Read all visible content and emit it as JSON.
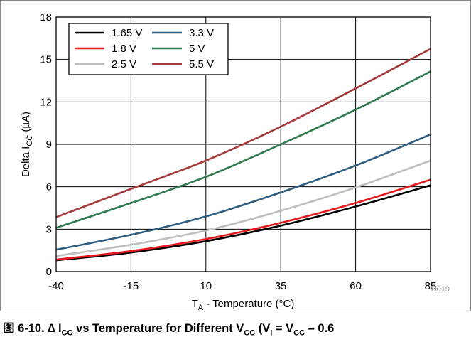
{
  "chart_data": {
    "type": "line",
    "xlabel": {
      "main": "T",
      "sub": "A",
      "rest": " - Temperature (°C)"
    },
    "ylabel": {
      "main": "Delta I",
      "sub": "CC",
      "rest": " (µA)"
    },
    "x_ticks": [
      -40,
      -15,
      10,
      35,
      60,
      85
    ],
    "y_ticks": [
      0,
      3,
      6,
      9,
      12,
      15,
      18
    ],
    "xlim": [
      -40,
      85
    ],
    "ylim": [
      0,
      18
    ],
    "grid": true,
    "legend_position": "top-left",
    "figure_code": "D019",
    "series": [
      {
        "name": "1.65 V",
        "color": "#000000",
        "x": [
          -40,
          -15,
          10,
          35,
          60,
          85
        ],
        "y": [
          0.8,
          1.35,
          2.15,
          3.25,
          4.6,
          6.1
        ]
      },
      {
        "name": "1.8 V",
        "color": "#e8191c",
        "x": [
          -40,
          -15,
          10,
          35,
          60,
          85
        ],
        "y": [
          0.85,
          1.45,
          2.3,
          3.45,
          4.85,
          6.5
        ]
      },
      {
        "name": "2.5 V",
        "color": "#bfbfbf",
        "x": [
          -40,
          -15,
          10,
          35,
          60,
          85
        ],
        "y": [
          1.1,
          1.9,
          2.9,
          4.3,
          5.95,
          7.85
        ]
      },
      {
        "name": "3.3 V",
        "color": "#2e5d80",
        "x": [
          -40,
          -15,
          10,
          35,
          60,
          85
        ],
        "y": [
          1.55,
          2.6,
          3.9,
          5.6,
          7.5,
          9.7
        ]
      },
      {
        "name": "5 V",
        "color": "#2e7b4d",
        "x": [
          -40,
          -15,
          10,
          35,
          60,
          85
        ],
        "y": [
          3.1,
          4.85,
          6.7,
          9.0,
          11.45,
          14.15
        ]
      },
      {
        "name": "5.5 V",
        "color": "#a53a3a",
        "x": [
          -40,
          -15,
          10,
          35,
          60,
          85
        ],
        "y": [
          3.85,
          5.85,
          7.85,
          10.25,
          12.95,
          15.75
        ]
      }
    ]
  },
  "caption": {
    "part1": "图 6-10. ∆ I",
    "sub1": "CC",
    "part2": " vs Temperature for Different V",
    "sub2": "CC",
    "part3": " (V",
    "sub3": "I",
    "part4": " = V",
    "sub4": "CC",
    "part5": " – 0.6"
  }
}
